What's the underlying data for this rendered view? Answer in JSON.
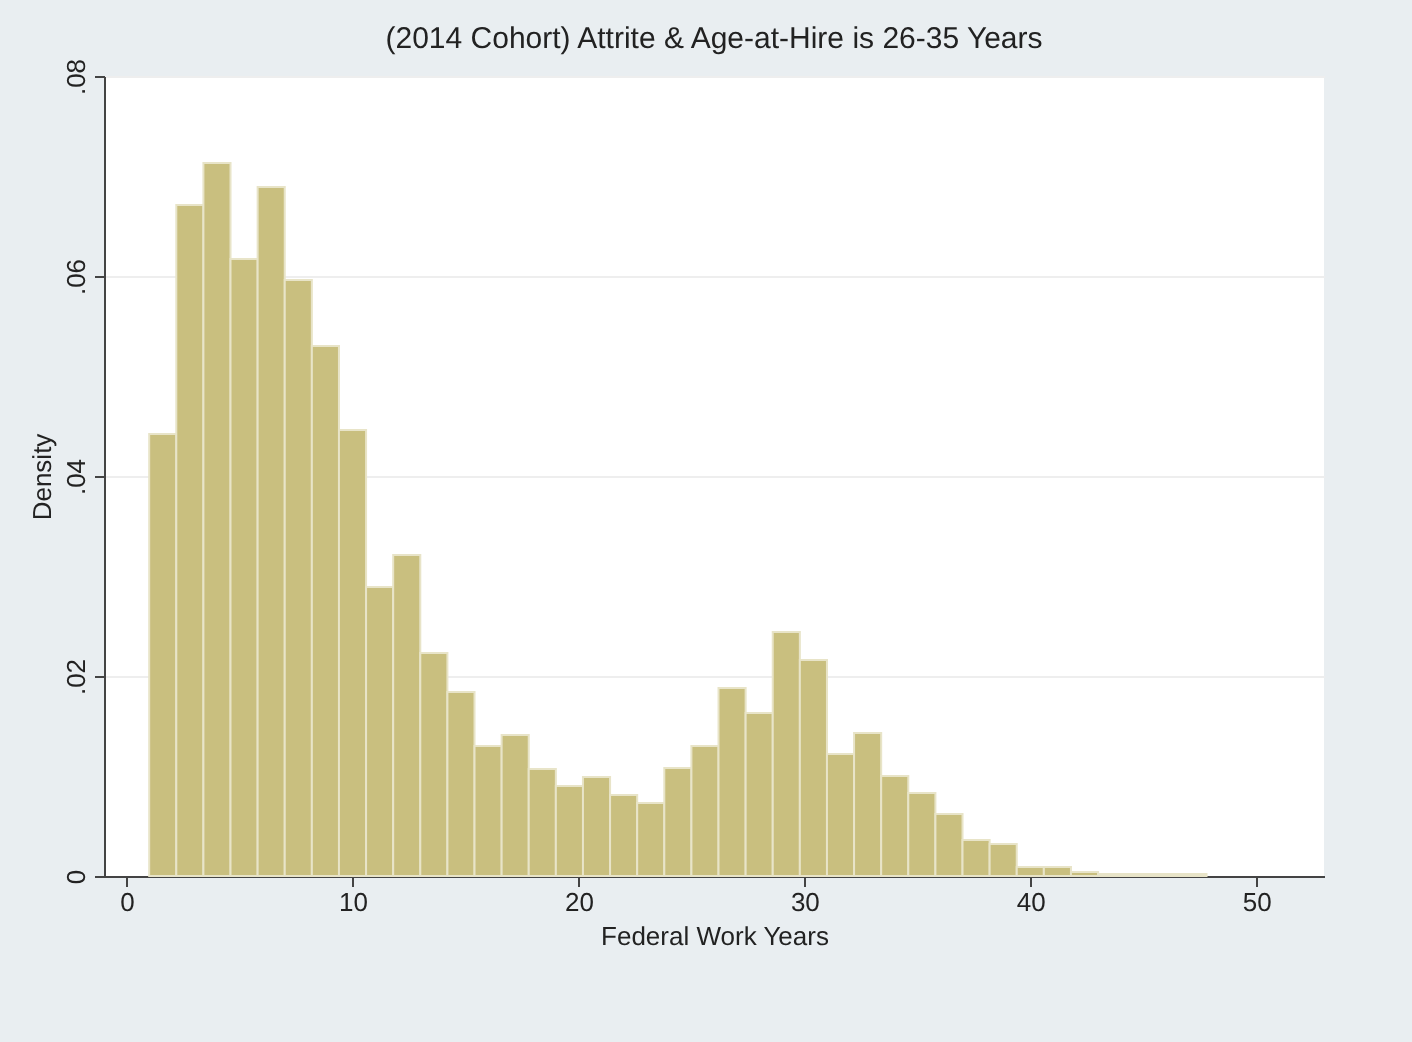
{
  "chart_data": {
    "type": "histogram",
    "title": "(2014 Cohort) Attrite & Age-at-Hire is 26-35 Years",
    "xlabel": "Federal Work Years",
    "ylabel": "Density",
    "color": "#c9bf7f",
    "bins": [
      1,
      2.2,
      3.4,
      4.6,
      5.8,
      7,
      8.2,
      9.4,
      10.6,
      11.8,
      13,
      14.2,
      15.4,
      16.6,
      17.8,
      19,
      20.2,
      21.4,
      22.6,
      23.8,
      25,
      26.2,
      27.4,
      28.6,
      29.8,
      31,
      32.2,
      33.4,
      34.6,
      35.8,
      37,
      38.2,
      39.4,
      40.6,
      41.8,
      43,
      44.2,
      45.4,
      46.6,
      47.8
    ],
    "values": [
      0.0442,
      0.0671,
      0.0713,
      0.0617,
      0.0689,
      0.0596,
      0.053,
      0.0446,
      0.0289,
      0.0321,
      0.0223,
      0.0184,
      0.013,
      0.0141,
      0.0107,
      0.009,
      0.0099,
      0.0081,
      0.0073,
      0.0108,
      0.013,
      0.0188,
      0.0163,
      0.0244,
      0.0216,
      0.0122,
      0.0143,
      0.01,
      0.0083,
      0.0062,
      0.0036,
      0.0032,
      0.0009,
      0.0009,
      0.0004,
      0.0002,
      0.0002,
      0.0002,
      0.0002
    ],
    "xlim": [
      -1,
      53
    ],
    "ylim": [
      0,
      0.08
    ],
    "xticks": [
      0,
      10,
      20,
      30,
      40,
      50
    ],
    "yticks": [
      {
        "value": 0,
        "label": "0"
      },
      {
        "value": 0.02,
        "label": ".02"
      },
      {
        "value": 0.04,
        "label": ".04"
      },
      {
        "value": 0.06,
        "label": ".06"
      },
      {
        "value": 0.08,
        "label": ".08"
      }
    ],
    "grid": "y"
  }
}
